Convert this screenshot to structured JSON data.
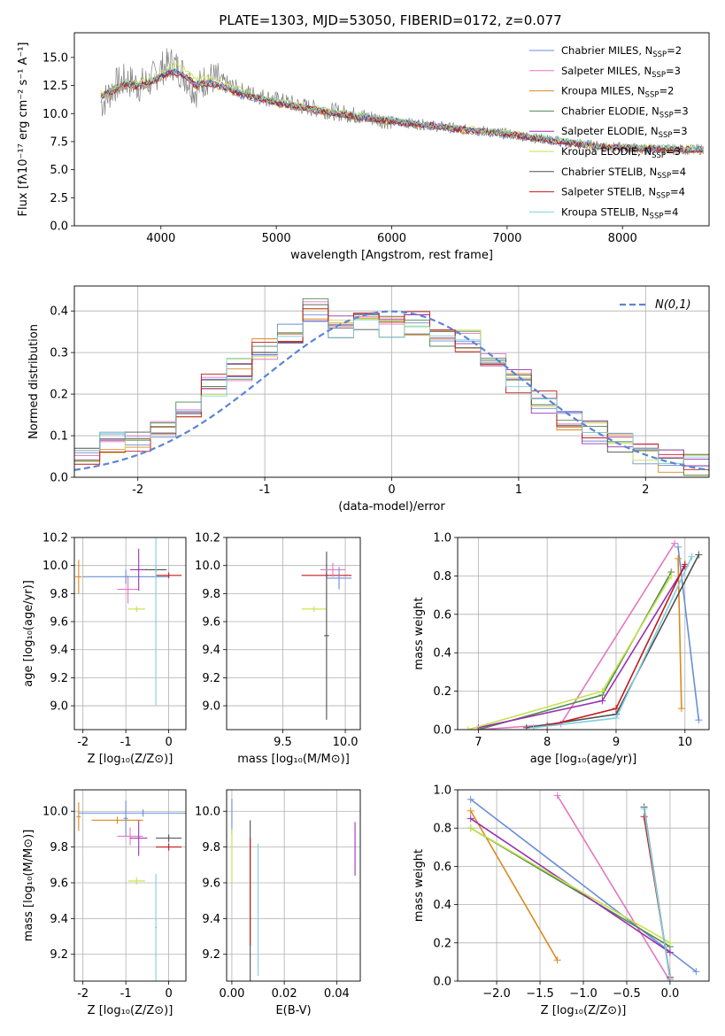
{
  "chart_data": [
    {
      "id": "spectrum",
      "type": "line",
      "title": "PLATE=1303, MJD=53050, FIBERID=0172, z=0.077",
      "xlabel": "wavelength [Angstrom, rest frame]",
      "ylabel": "Flux [fλ10⁻¹⁷ erg cm⁻² s⁻¹ A⁻¹]",
      "xlim": [
        3250,
        8750
      ],
      "ylim": [
        0,
        17.2
      ],
      "xticks": [
        4000,
        5000,
        6000,
        7000,
        8000
      ],
      "yticks": [
        0.0,
        2.5,
        5.0,
        7.5,
        10.0,
        12.5,
        15.0
      ],
      "grid": false,
      "legend_position": "top-right",
      "x": [
        3500,
        3600,
        3700,
        3800,
        3900,
        4000,
        4100,
        4200,
        4300,
        4400,
        4500,
        4700,
        5000,
        5300,
        5600,
        6000,
        6300,
        6600,
        7000,
        7400,
        7600,
        7900,
        8200,
        8500
      ],
      "data_flux": [
        11.0,
        12.5,
        13.0,
        12.5,
        12.8,
        14.0,
        14.5,
        13.5,
        12.0,
        13.2,
        13.0,
        12.0,
        11.2,
        10.5,
        10.0,
        9.3,
        9.0,
        8.6,
        8.2,
        7.6,
        7.3,
        7.0,
        6.8,
        6.8
      ],
      "series": [
        {
          "name": "Chabrier MILES, N$_{SSP}$=2",
          "color": "#6a8fd8",
          "values": [
            11.5,
            12.0,
            12.5,
            12.3,
            12.6,
            13.2,
            13.6,
            13.3,
            12.4,
            12.6,
            12.4,
            11.6,
            10.9,
            10.3,
            9.8,
            9.2,
            8.9,
            8.5,
            8.1,
            7.5,
            7.2,
            6.9,
            6.8,
            6.7
          ]
        },
        {
          "name": "Salpeter MILES, N$_{SSP}$=3",
          "color": "#e377c2",
          "values": [
            11.6,
            12.1,
            12.6,
            12.4,
            12.7,
            13.3,
            13.7,
            13.4,
            12.5,
            12.7,
            12.5,
            11.7,
            11.0,
            10.4,
            9.9,
            9.3,
            9.0,
            8.6,
            8.2,
            7.6,
            7.3,
            7.0,
            6.9,
            6.8
          ]
        },
        {
          "name": "Kroupa MILES, N$_{SSP}$=2",
          "color": "#d98a1f",
          "values": [
            11.5,
            12.0,
            12.5,
            12.3,
            12.6,
            13.2,
            13.6,
            13.3,
            12.4,
            12.6,
            12.4,
            11.6,
            10.9,
            10.3,
            9.8,
            9.2,
            8.9,
            8.5,
            8.1,
            7.5,
            7.2,
            6.9,
            6.8,
            6.7
          ]
        },
        {
          "name": "Chabrier ELODIE, N$_{SSP}$=3",
          "color": "#4f8a4f",
          "values": [
            11.7,
            12.2,
            12.7,
            12.5,
            12.8,
            13.4,
            13.8,
            13.5,
            12.6,
            12.8,
            12.6,
            11.8,
            11.0,
            10.4,
            9.9,
            9.3,
            9.0,
            8.6,
            8.2,
            7.6,
            7.3,
            7.0,
            6.9,
            6.8
          ]
        },
        {
          "name": "Salpeter ELODIE, N$_{SSP}$=3",
          "color": "#9b30b0",
          "values": [
            11.7,
            12.2,
            12.7,
            12.5,
            12.8,
            13.4,
            13.8,
            13.5,
            12.6,
            12.8,
            12.6,
            11.8,
            11.0,
            10.4,
            9.9,
            9.3,
            9.0,
            8.6,
            8.2,
            7.6,
            7.3,
            7.0,
            6.9,
            6.8
          ]
        },
        {
          "name": "Kroupa ELODIE, N$_{SSP}$=3",
          "color": "#c4e34a",
          "values": [
            11.8,
            12.3,
            12.9,
            12.7,
            13.0,
            13.7,
            14.4,
            14.0,
            13.0,
            13.2,
            13.0,
            12.0,
            11.1,
            10.5,
            10.0,
            9.4,
            9.1,
            8.7,
            8.3,
            7.7,
            7.4,
            7.1,
            7.0,
            6.9
          ]
        },
        {
          "name": "Chabrier STELIB, N$_{SSP}$=4",
          "color": "#505050",
          "values": [
            11.6,
            12.1,
            12.6,
            12.4,
            12.7,
            13.3,
            13.7,
            13.4,
            12.5,
            12.7,
            12.5,
            11.7,
            11.0,
            10.4,
            9.9,
            9.3,
            9.0,
            8.6,
            8.2,
            7.6,
            7.3,
            7.0,
            6.9,
            6.8
          ]
        },
        {
          "name": "Salpeter STELIB, N$_{SSP}$=4",
          "color": "#c21b1b",
          "values": [
            11.6,
            12.1,
            12.6,
            12.4,
            12.7,
            13.3,
            13.7,
            13.4,
            12.5,
            12.7,
            12.5,
            11.7,
            11.0,
            10.4,
            9.9,
            9.3,
            9.0,
            8.6,
            8.2,
            7.6,
            7.3,
            7.0,
            6.9,
            6.8
          ]
        },
        {
          "name": "Kroupa STELIB, N$_{SSP}$=4",
          "color": "#7ecfe0",
          "values": [
            11.6,
            12.1,
            12.7,
            12.5,
            12.8,
            13.4,
            13.8,
            13.5,
            12.6,
            12.8,
            12.6,
            11.8,
            11.1,
            10.5,
            10.0,
            9.4,
            9.1,
            8.7,
            8.3,
            7.7,
            7.4,
            7.1,
            7.0,
            6.9
          ]
        }
      ]
    },
    {
      "id": "residuals",
      "type": "line",
      "xlabel": "(data-model)/error",
      "ylabel": "Normed distribution",
      "xlim": [
        -2.5,
        2.5
      ],
      "ylim": [
        0,
        0.46
      ],
      "xticks": [
        -2,
        -1,
        0,
        1,
        2
      ],
      "yticks": [
        0.0,
        0.1,
        0.2,
        0.3,
        0.4
      ],
      "grid": true,
      "legend_position": "top-right",
      "legend_label": "N(0,1)",
      "gaussian_color": "#5b84d4",
      "bin_centers": [
        -2.4,
        -2.2,
        -2.0,
        -1.8,
        -1.6,
        -1.4,
        -1.2,
        -1.0,
        -0.8,
        -0.6,
        -0.4,
        -0.2,
        0.0,
        0.2,
        0.4,
        0.6,
        0.8,
        1.0,
        1.2,
        1.4,
        1.6,
        1.8,
        2.0,
        2.2,
        2.4
      ],
      "histogram": [
        0.05,
        0.08,
        0.09,
        0.12,
        0.17,
        0.22,
        0.26,
        0.31,
        0.35,
        0.4,
        0.36,
        0.37,
        0.36,
        0.37,
        0.34,
        0.33,
        0.28,
        0.23,
        0.18,
        0.14,
        0.11,
        0.08,
        0.06,
        0.04,
        0.03
      ]
    },
    {
      "id": "age-vs-Z",
      "type": "scatter",
      "xlabel": "Z [log₁₀(Z/Z⊙)]",
      "ylabel": "age  [log₁₀(age/yr)]",
      "xlim": [
        -2.2,
        0.4
      ],
      "ylim": [
        8.83,
        10.2
      ],
      "xticks": [
        -2,
        -1,
        0
      ],
      "yticks": [
        9.0,
        9.2,
        9.4,
        9.6,
        9.8,
        10.0,
        10.2
      ],
      "grid": true,
      "errorbars": [
        {
          "x": -2.1,
          "y": 9.92,
          "xerr": 0.08,
          "yerr": 0.12,
          "color": "#d98a1f"
        },
        {
          "x": -1.0,
          "y": 9.92,
          "xerr": 1.0,
          "yerr": 0.05,
          "color": "#6a8fd8"
        },
        {
          "x": -0.95,
          "y": 9.83,
          "xerr": 0.25,
          "yerr": 0.1,
          "color": "#e377c2"
        },
        {
          "x": -0.7,
          "y": 9.97,
          "xerr": 0.2,
          "yerr": 0.15,
          "color": "#9b30b0"
        },
        {
          "x": -0.75,
          "y": 9.69,
          "xerr": 0.2,
          "yerr": 0.02,
          "color": "#c4e34a"
        },
        {
          "x": -0.3,
          "y": 9.97,
          "xerr": 0.25,
          "yerr": 0.03,
          "color": "#505050"
        },
        {
          "x": 0.0,
          "y": 9.93,
          "xerr": 0.3,
          "yerr": 0.02,
          "color": "#c21b1b"
        },
        {
          "x": -0.3,
          "y": 9.6,
          "xerr": 0.02,
          "yerr": 0.6,
          "color": "#7ecfe0"
        }
      ]
    },
    {
      "id": "age-vs-mass",
      "type": "scatter",
      "xlabel": "mass [log₁₀(M/M⊙)]",
      "ylabel": "",
      "xlim": [
        9.05,
        10.12
      ],
      "ylim": [
        8.83,
        10.2
      ],
      "xticks": [
        9.5,
        10.0
      ],
      "yticks": [
        9.0,
        9.2,
        9.4,
        9.6,
        9.8,
        10.0,
        10.2
      ],
      "grid": true,
      "errorbars": [
        {
          "x": 9.85,
          "y": 9.93,
          "xerr": 0.2,
          "yerr": 0.02,
          "color": "#c21b1b"
        },
        {
          "x": 9.95,
          "y": 9.91,
          "xerr": 0.1,
          "yerr": 0.08,
          "color": "#6a8fd8"
        },
        {
          "x": 9.75,
          "y": 9.69,
          "xerr": 0.1,
          "yerr": 0.02,
          "color": "#c4e34a"
        },
        {
          "x": 9.85,
          "y": 9.5,
          "xerr": 0.02,
          "yerr": 0.6,
          "color": "#505050"
        },
        {
          "x": 9.9,
          "y": 9.97,
          "xerr": 0.1,
          "yerr": 0.05,
          "color": "#e377c2"
        }
      ]
    },
    {
      "id": "massweight-vs-age",
      "type": "line",
      "xlabel": "age  [log₁₀(age/yr)]",
      "ylabel": "mass weight",
      "xlim": [
        6.7,
        10.35
      ],
      "ylim": [
        0,
        1.0
      ],
      "xticks": [
        7,
        8,
        9,
        10
      ],
      "yticks": [
        0.0,
        0.2,
        0.4,
        0.6,
        0.8,
        1.0
      ],
      "grid": true,
      "series": [
        {
          "name": "Chabrier MILES",
          "color": "#6a8fd8",
          "x": [
            9.9,
            10.2
          ],
          "y": [
            0.95,
            0.05
          ]
        },
        {
          "name": "Salpeter MILES",
          "color": "#e377c2",
          "x": [
            7.0,
            8.2,
            9.85
          ],
          "y": [
            0.0,
            0.03,
            0.97
          ]
        },
        {
          "name": "Kroupa MILES",
          "color": "#d98a1f",
          "x": [
            9.9,
            9.95
          ],
          "y": [
            0.89,
            0.11
          ]
        },
        {
          "name": "Chabrier ELODIE",
          "color": "#4f8a4f",
          "x": [
            7.0,
            8.8,
            9.8
          ],
          "y": [
            0.0,
            0.18,
            0.82
          ]
        },
        {
          "name": "Salpeter ELODIE",
          "color": "#9b30b0",
          "x": [
            7.0,
            8.8,
            10.0
          ],
          "y": [
            0.01,
            0.15,
            0.85
          ]
        },
        {
          "name": "Kroupa ELODIE",
          "color": "#c4e34a",
          "x": [
            6.85,
            8.8,
            9.8
          ],
          "y": [
            0.0,
            0.2,
            0.8
          ]
        },
        {
          "name": "Chabrier STELIB",
          "color": "#505050",
          "x": [
            7.7,
            9.0,
            10.2
          ],
          "y": [
            0.01,
            0.08,
            0.91
          ]
        },
        {
          "name": "Salpeter STELIB",
          "color": "#c21b1b",
          "x": [
            8.0,
            9.0,
            10.0
          ],
          "y": [
            0.02,
            0.11,
            0.86
          ]
        },
        {
          "name": "Kroupa STELIB",
          "color": "#7ecfe0",
          "x": [
            7.8,
            9.0,
            10.1
          ],
          "y": [
            0.01,
            0.06,
            0.9
          ]
        }
      ]
    },
    {
      "id": "mass-vs-Z",
      "type": "scatter",
      "xlabel": "Z [log₁₀(Z/Z⊙)]",
      "ylabel": "mass [log₁₀(M/M⊙)]",
      "xlim": [
        -2.2,
        0.4
      ],
      "ylim": [
        9.05,
        10.12
      ],
      "xticks": [
        -2,
        -1,
        0
      ],
      "yticks": [
        9.2,
        9.4,
        9.6,
        9.8,
        10.0
      ],
      "grid": true,
      "errorbars": [
        {
          "x": -2.1,
          "y": 9.97,
          "xerr": 0.05,
          "yerr": 0.08,
          "color": "#d98a1f"
        },
        {
          "x": -0.6,
          "y": 9.99,
          "xerr": 1.5,
          "yerr": 0.02,
          "color": "#6a8fd8"
        },
        {
          "x": -1.2,
          "y": 9.95,
          "xerr": 0.6,
          "yerr": 0.02,
          "color": "#d98a1f"
        },
        {
          "x": -1.0,
          "y": 9.96,
          "xerr": 0.05,
          "yerr": 0.1,
          "color": "#6a8fd8"
        },
        {
          "x": -0.9,
          "y": 9.86,
          "xerr": 0.3,
          "yerr": 0.05,
          "color": "#e377c2"
        },
        {
          "x": -0.7,
          "y": 9.85,
          "xerr": 0.2,
          "yerr": 0.1,
          "color": "#9b30b0"
        },
        {
          "x": -0.75,
          "y": 9.61,
          "xerr": 0.2,
          "yerr": 0.02,
          "color": "#c4e34a"
        },
        {
          "x": 0.0,
          "y": 9.85,
          "xerr": 0.3,
          "yerr": 0.02,
          "color": "#505050"
        },
        {
          "x": 0.0,
          "y": 9.8,
          "xerr": 0.3,
          "yerr": 0.02,
          "color": "#c21b1b"
        },
        {
          "x": -0.3,
          "y": 9.35,
          "xerr": 0.02,
          "yerr": 0.3,
          "color": "#7ecfe0"
        }
      ]
    },
    {
      "id": "mass-vs-ebv",
      "type": "scatter",
      "xlabel": "E(B-V)",
      "ylabel": "",
      "xlim": [
        -0.002,
        0.049
      ],
      "ylim": [
        9.05,
        10.12
      ],
      "xticks": [
        0.0,
        0.02,
        0.04
      ],
      "yticks": [
        9.2,
        9.4,
        9.6,
        9.8,
        10.0
      ],
      "grid": true,
      "errorbars": [
        {
          "x": 0.0,
          "y": 9.97,
          "xerr": 0.0,
          "yerr": 0.1,
          "color": "#6a8fd8"
        },
        {
          "x": 0.0,
          "y": 9.75,
          "xerr": 0.0,
          "yerr": 0.15,
          "color": "#c4e34a"
        },
        {
          "x": 0.007,
          "y": 9.5,
          "xerr": 0.0,
          "yerr": 0.45,
          "color": "#505050"
        },
        {
          "x": 0.007,
          "y": 9.55,
          "xerr": 0.0,
          "yerr": 0.3,
          "color": "#c21b1b"
        },
        {
          "x": 0.01,
          "y": 9.45,
          "xerr": 0.0,
          "yerr": 0.37,
          "color": "#7ecfe0"
        },
        {
          "x": 0.047,
          "y": 9.79,
          "xerr": 0.0,
          "yerr": 0.15,
          "color": "#9b30b0"
        }
      ]
    },
    {
      "id": "massweight-vs-Z",
      "type": "line",
      "xlabel": "Z [log₁₀(Z/Z⊙)]",
      "ylabel": "mass weight",
      "xlim": [
        -2.45,
        0.45
      ],
      "ylim": [
        0,
        1.0
      ],
      "xticks": [
        -2.0,
        -1.5,
        -1.0,
        -0.5,
        0.0
      ],
      "yticks": [
        0.0,
        0.2,
        0.4,
        0.6,
        0.8,
        1.0
      ],
      "grid": true,
      "series": [
        {
          "name": "Chabrier MILES",
          "color": "#6a8fd8",
          "x": [
            -2.3,
            0.3
          ],
          "y": [
            0.95,
            0.05
          ]
        },
        {
          "name": "Salpeter MILES",
          "color": "#e377c2",
          "x": [
            -1.3,
            0.0
          ],
          "y": [
            0.97,
            0.0
          ]
        },
        {
          "name": "Kroupa MILES",
          "color": "#d98a1f",
          "x": [
            -2.3,
            -1.3
          ],
          "y": [
            0.89,
            0.11
          ]
        },
        {
          "name": "Chabrier ELODIE",
          "color": "#4f8a4f",
          "x": [
            -2.3,
            0.0
          ],
          "y": [
            0.8,
            0.18
          ]
        },
        {
          "name": "Salpeter ELODIE",
          "color": "#9b30b0",
          "x": [
            -2.3,
            0.0
          ],
          "y": [
            0.85,
            0.15
          ]
        },
        {
          "name": "Kroupa ELODIE",
          "color": "#c4e34a",
          "x": [
            -2.3,
            0.0
          ],
          "y": [
            0.8,
            0.2
          ]
        },
        {
          "name": "Chabrier STELIB",
          "color": "#505050",
          "x": [
            -0.3,
            0.0
          ],
          "y": [
            0.91,
            0.01
          ]
        },
        {
          "name": "Salpeter STELIB",
          "color": "#c21b1b",
          "x": [
            -0.3,
            0.0
          ],
          "y": [
            0.86,
            0.02
          ]
        },
        {
          "name": "Kroupa STELIB",
          "color": "#7ecfe0",
          "x": [
            -0.3,
            0.0
          ],
          "y": [
            0.9,
            0.01
          ]
        }
      ]
    }
  ]
}
